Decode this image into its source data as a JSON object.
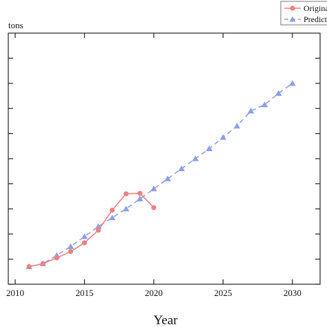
{
  "chart_data": {
    "type": "line",
    "title": "",
    "unit_label": "tons",
    "xlabel": "Year",
    "ylabel": "",
    "xlim": [
      2009.5,
      2032
    ],
    "ylim": [
      0,
      10
    ],
    "x_ticks": [
      2010,
      2015,
      2020,
      2025,
      2030
    ],
    "x_tick_labels": [
      "2010",
      "2015",
      "2020",
      "2025",
      "2030"
    ],
    "y_ticks": [
      0,
      1,
      2,
      3,
      4,
      5,
      6,
      7,
      8,
      9
    ],
    "legend_position": "top-right",
    "series": [
      {
        "name": "Original",
        "color": "#f08080",
        "line": "solid",
        "marker": "circle",
        "x": [
          2011,
          2012,
          2013,
          2014,
          2015,
          2016,
          2017,
          2018,
          2019,
          2020
        ],
        "y": [
          0.7,
          0.82,
          1.05,
          1.3,
          1.65,
          2.15,
          2.95,
          3.6,
          3.62,
          3.05
        ]
      },
      {
        "name": "Predicted",
        "color": "#8c9fe8",
        "line": "dashed",
        "marker": "triangle",
        "x": [
          2011,
          2012,
          2013,
          2014,
          2015,
          2016,
          2017,
          2018,
          2019,
          2020,
          2021,
          2022,
          2023,
          2024,
          2025,
          2026,
          2027,
          2028,
          2029,
          2030
        ],
        "y": [
          0.7,
          0.82,
          1.15,
          1.5,
          1.9,
          2.3,
          2.65,
          3.0,
          3.4,
          3.8,
          4.2,
          4.6,
          5.0,
          5.4,
          5.85,
          6.3,
          6.9,
          7.15,
          7.6,
          8.0
        ]
      }
    ]
  }
}
